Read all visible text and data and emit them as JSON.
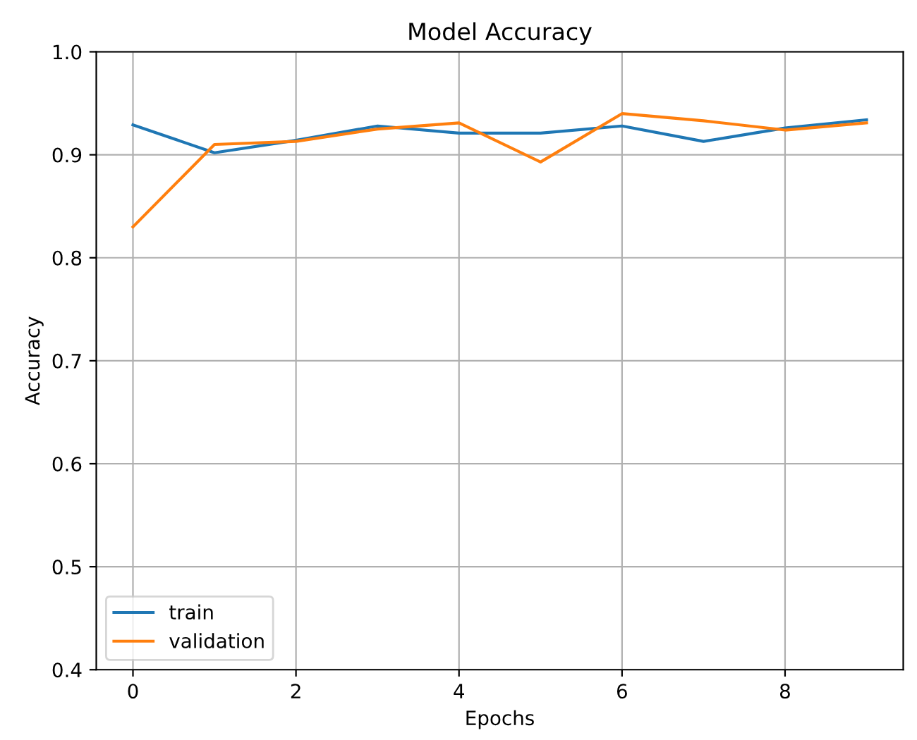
{
  "chart_data": {
    "type": "line",
    "title": "Model Accuracy",
    "xlabel": "Epochs",
    "ylabel": "Accuracy",
    "x": [
      0,
      1,
      2,
      3,
      4,
      5,
      6,
      7,
      8,
      9
    ],
    "series": [
      {
        "name": "train",
        "color": "#1f77b4",
        "values": [
          0.929,
          0.902,
          0.914,
          0.928,
          0.921,
          0.921,
          0.928,
          0.913,
          0.926,
          0.934
        ]
      },
      {
        "name": "validation",
        "color": "#ff7f0e",
        "values": [
          0.83,
          0.91,
          0.913,
          0.925,
          0.931,
          0.893,
          0.94,
          0.933,
          0.924,
          0.931
        ]
      }
    ],
    "xlim": [
      -0.45,
      9.45
    ],
    "xticks": [
      0,
      2,
      4,
      6,
      8
    ],
    "ylim": [
      0.4,
      1.0
    ],
    "yticks": [
      0.4,
      0.5,
      0.6,
      0.7,
      0.8,
      0.9,
      {
        "value": 1.0,
        "label": "1.0"
      }
    ],
    "grid": true,
    "legend": "lower left"
  }
}
